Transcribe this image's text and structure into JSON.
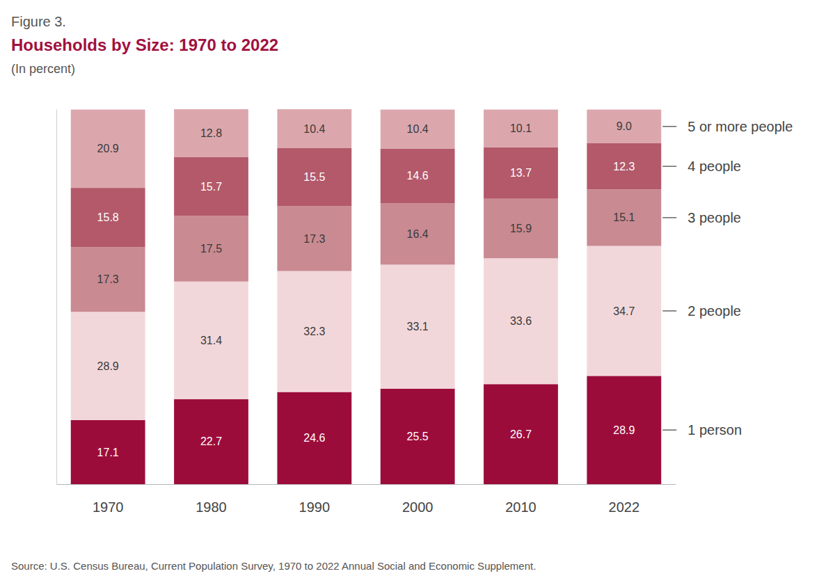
{
  "chart_data": {
    "type": "bar",
    "figure_label": "Figure 3.",
    "title": "Households by Size: 1970 to 2022",
    "subtitle": "(In percent)",
    "source": "Source: U.S. Census Bureau, Current Population Survey, 1970 to 2022 Annual Social and Economic Supplement.",
    "categories": [
      "1970",
      "1980",
      "1990",
      "2000",
      "2010",
      "2022"
    ],
    "series": [
      {
        "name": "1 person",
        "color": "#9c0c3b",
        "values": [
          17.1,
          22.7,
          24.6,
          25.5,
          26.7,
          28.9
        ]
      },
      {
        "name": "2 people",
        "color": "#f2d7da",
        "values": [
          28.9,
          31.4,
          32.3,
          33.1,
          33.6,
          34.7
        ]
      },
      {
        "name": "3 people",
        "color": "#c98a92",
        "values": [
          17.3,
          17.5,
          17.3,
          16.4,
          15.9,
          15.1
        ]
      },
      {
        "name": "4 people",
        "color": "#b3596a",
        "values": [
          15.8,
          15.7,
          15.5,
          14.6,
          13.7,
          12.3
        ]
      },
      {
        "name": "5 or more people",
        "color": "#dba7ad",
        "values": [
          20.9,
          12.8,
          10.4,
          10.4,
          10.1,
          9.0
        ],
        "value_labels": [
          "20.9",
          "12.8",
          "10.4",
          "10.4",
          "10.1",
          "9.0"
        ]
      }
    ],
    "ylim": [
      0,
      100.1
    ],
    "stacked": true,
    "data_labels": true,
    "legend": "right",
    "tick_labels": "x"
  }
}
